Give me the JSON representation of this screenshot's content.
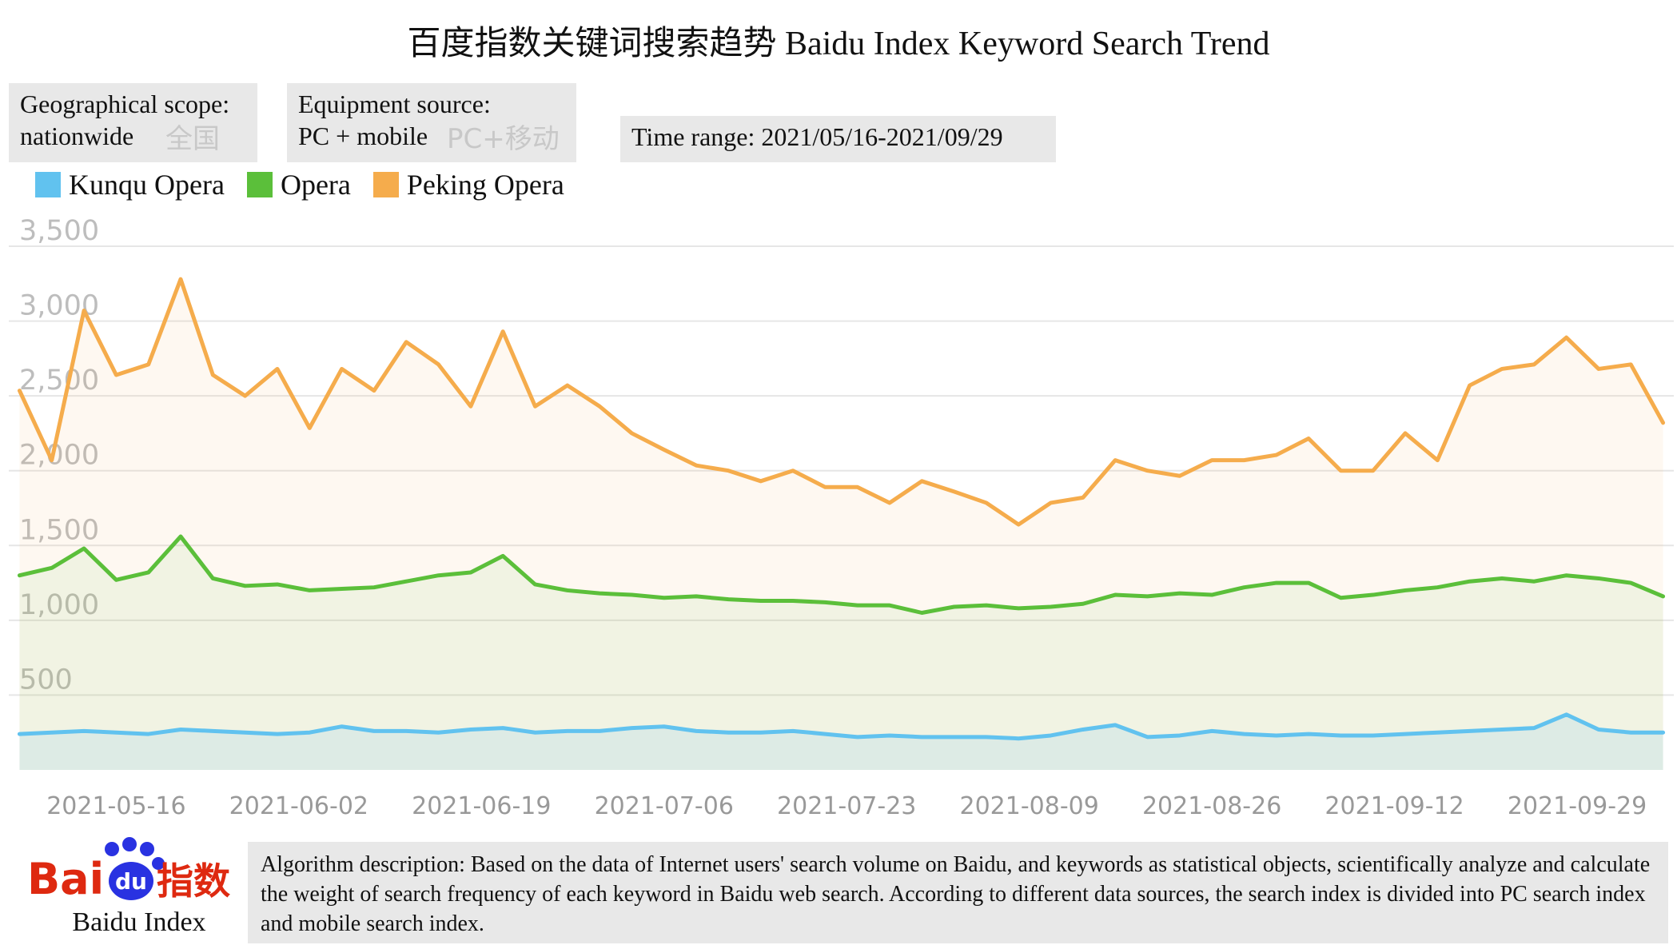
{
  "header": {
    "title": "百度指数关键词搜索趋势 Baidu Index Keyword Search Trend"
  },
  "filters": [
    {
      "lines": [
        "Geographical scope:",
        "nationwide"
      ],
      "ghost": "全国"
    },
    {
      "lines": [
        "Equipment source:",
        "PC + mobile"
      ],
      "ghost": "PC+移动"
    },
    {
      "lines": [
        "Time range: 2021/05/16-2021/09/29"
      ]
    }
  ],
  "logo": {
    "bai": "Bai",
    "du": "du",
    "index_cn": "指数",
    "caption": "Baidu Index"
  },
  "footer": {
    "description": "Algorithm description: Based on the data of Internet users' search volume on Baidu, and keywords as statistical objects, scientifically analyze and calculate the weight of search frequency of each keyword in Baidu web search. According to different data sources, the search index is divided into PC search index and mobile search index."
  },
  "chart_data": {
    "type": "line",
    "x": [
      "2021-05-07",
      "2021-05-10",
      "2021-05-13",
      "2021-05-16",
      "2021-05-19",
      "2021-05-22",
      "2021-05-25",
      "2021-05-28",
      "2021-05-31",
      "2021-06-03",
      "2021-06-06",
      "2021-06-09",
      "2021-06-12",
      "2021-06-15",
      "2021-06-18",
      "2021-06-21",
      "2021-06-24",
      "2021-06-27",
      "2021-06-30",
      "2021-07-03",
      "2021-07-06",
      "2021-07-09",
      "2021-07-12",
      "2021-07-15",
      "2021-07-18",
      "2021-07-21",
      "2021-07-24",
      "2021-07-27",
      "2021-07-30",
      "2021-08-02",
      "2021-08-05",
      "2021-08-08",
      "2021-08-11",
      "2021-08-14",
      "2021-08-17",
      "2021-08-20",
      "2021-08-23",
      "2021-08-26",
      "2021-08-29",
      "2021-09-01",
      "2021-09-04",
      "2021-09-07",
      "2021-09-10",
      "2021-09-13",
      "2021-09-16",
      "2021-09-19",
      "2021-09-22",
      "2021-09-25",
      "2021-09-28",
      "2021-10-01",
      "2021-10-04",
      "2021-10-07"
    ],
    "series": [
      {
        "name": "Kunqu Opera",
        "color": "#61c2ef",
        "values": [
          240,
          250,
          260,
          250,
          240,
          270,
          260,
          250,
          240,
          250,
          290,
          260,
          260,
          250,
          270,
          280,
          250,
          260,
          260,
          280,
          290,
          260,
          250,
          250,
          260,
          240,
          220,
          230,
          220,
          220,
          220,
          210,
          230,
          270,
          300,
          220,
          230,
          260,
          240,
          230,
          240,
          230,
          230,
          240,
          250,
          260,
          270,
          280,
          370,
          270,
          250,
          250
        ]
      },
      {
        "name": "Opera",
        "color": "#5bbf3a",
        "values": [
          1300,
          1350,
          1480,
          1270,
          1320,
          1560,
          1280,
          1230,
          1240,
          1200,
          1210,
          1220,
          1260,
          1300,
          1320,
          1430,
          1240,
          1200,
          1180,
          1170,
          1150,
          1160,
          1140,
          1130,
          1130,
          1120,
          1100,
          1100,
          1050,
          1090,
          1100,
          1080,
          1090,
          1110,
          1170,
          1160,
          1180,
          1170,
          1220,
          1250,
          1250,
          1150,
          1170,
          1200,
          1220,
          1260,
          1280,
          1260,
          1300,
          1280,
          1250,
          1160
        ]
      },
      {
        "name": "Peking Opera",
        "color": "#f5ac4c",
        "values": [
          2535,
          2070,
          3070,
          2640,
          2710,
          3280,
          2640,
          2500,
          2680,
          2285,
          2680,
          2535,
          2860,
          2710,
          2430,
          2930,
          2430,
          2570,
          2430,
          2250,
          2140,
          2035,
          2000,
          1930,
          2000,
          1890,
          1890,
          1785,
          1930,
          1860,
          1785,
          1640,
          1785,
          1820,
          2070,
          2000,
          1965,
          2070,
          2070,
          2105,
          2215,
          2000,
          2000,
          2250,
          2070,
          2570,
          2680,
          2710,
          2890,
          2680,
          2710,
          2320
        ]
      }
    ],
    "xlim": [
      "2021-05-06",
      "2021-10-08"
    ],
    "xticks": [
      "2021-05-16",
      "2021-06-02",
      "2021-06-19",
      "2021-07-06",
      "2021-07-23",
      "2021-08-09",
      "2021-08-26",
      "2021-09-12",
      "2021-09-29"
    ],
    "ylim": [
      0,
      3500
    ],
    "yticks": [
      500,
      {
        "value": 1000,
        "label": "1,000"
      },
      {
        "value": 1500,
        "label": "1,500"
      },
      {
        "value": 2000,
        "label": "2,000"
      },
      {
        "value": 2500,
        "label": "2,500"
      },
      {
        "value": 3000,
        "label": "3,000"
      },
      {
        "value": 3500,
        "label": "3,500"
      }
    ],
    "grid": true
  }
}
